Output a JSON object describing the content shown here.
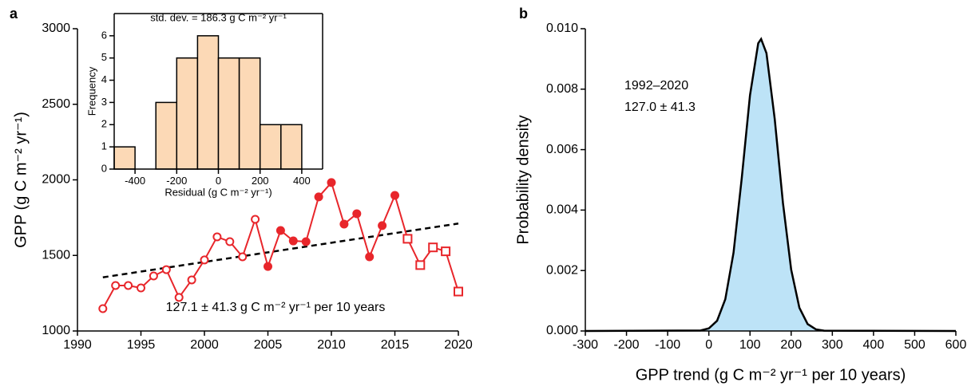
{
  "chart_data": [
    {
      "type": "line",
      "panel_label": "a",
      "ylabel": "GPP (g C m⁻² yr⁻¹)",
      "xlim": [
        1990,
        2020
      ],
      "xticks": [
        1990,
        1995,
        2000,
        2005,
        2010,
        2015,
        2020
      ],
      "ylim": [
        1000,
        3000
      ],
      "yticks": [
        1000,
        1500,
        2000,
        2500,
        3000
      ],
      "series": [
        {
          "marker": "open-circle",
          "color": "#e8262b",
          "x": [
            1992,
            1993,
            1994,
            1995,
            1996,
            1997,
            1998,
            1999,
            2000,
            2001,
            2002,
            2003,
            2004
          ],
          "values": [
            1148,
            1301,
            1301,
            1285,
            1364,
            1406,
            1222,
            1338,
            1470,
            1623,
            1591,
            1491,
            1739
          ]
        },
        {
          "marker": "filled-circle",
          "color": "#e8262b",
          "x": [
            2005,
            2006,
            2007,
            2008,
            2009,
            2010,
            2011,
            2012,
            2013,
            2014,
            2015
          ],
          "values": [
            1427,
            1665,
            1596,
            1591,
            1887,
            1982,
            1707,
            1776,
            1491,
            1697,
            1897
          ]
        },
        {
          "marker": "open-square",
          "color": "#e8262b",
          "x": [
            2016,
            2017,
            2018,
            2019,
            2020
          ],
          "values": [
            1610,
            1436,
            1553,
            1527,
            1261
          ]
        }
      ],
      "trend": {
        "x": [
          1992,
          2020
        ],
        "values": [
          1355,
          1711
        ],
        "color": "#000000",
        "dashed": true
      },
      "annotations": [
        "127.1 ± 41.3 g C m⁻² yr⁻¹ per 10 years"
      ]
    },
    {
      "type": "area",
      "panel_label": "b",
      "xlabel": "GPP trend (g C m⁻² yr⁻¹ per 10 years)",
      "ylabel": "Probability density",
      "xlim": [
        -300,
        600
      ],
      "xticks": [
        -300,
        -200,
        -100,
        0,
        100,
        200,
        300,
        400,
        500,
        600
      ],
      "ylim": [
        0,
        0.01
      ],
      "yticks": [
        {
          "value": 0,
          "label": "0.000"
        },
        {
          "value": 0.002,
          "label": "0.002"
        },
        {
          "value": 0.004,
          "label": "0.004"
        },
        {
          "value": 0.006,
          "label": "0.006"
        },
        {
          "value": 0.008,
          "label": "0.008"
        },
        {
          "value": 0.01,
          "label": "0.010"
        }
      ],
      "color": "#bde3f7",
      "x": [
        -300,
        -20,
        0,
        20,
        40,
        60,
        80,
        100,
        120,
        127,
        140,
        160,
        180,
        200,
        220,
        240,
        260,
        280,
        600
      ],
      "values": [
        0,
        1.72e-05,
        8.55e-05,
        0.000337,
        0.00105,
        0.00259,
        0.00506,
        0.0078,
        0.00952,
        0.00966,
        0.00919,
        0.00702,
        0.00424,
        0.00203,
        0.000766,
        0.000229,
        5.41e-05,
        1.01e-05,
        0
      ],
      "annotations": [
        "1992–2020",
        "127.0 ± 41.3"
      ]
    },
    {
      "type": "histogram",
      "title": "std. dev. = 186.3 g C m⁻² yr⁻¹",
      "xlabel": "Residual (g C m⁻² yr⁻¹)",
      "ylabel": "Frequency",
      "bins": [
        -500,
        -400,
        -300,
        -200,
        -100,
        0,
        100,
        200,
        300,
        400
      ],
      "values": [
        1,
        0,
        3,
        5,
        6,
        5,
        5,
        2,
        2
      ],
      "color": "#fcd9b6",
      "xlim": [
        -500,
        500
      ],
      "xticks": [
        -400,
        -200,
        0,
        200,
        400
      ],
      "ylim": [
        0,
        7
      ],
      "yticks": [
        0,
        1,
        2,
        3,
        4,
        5,
        6
      ],
      "frame": true
    }
  ]
}
